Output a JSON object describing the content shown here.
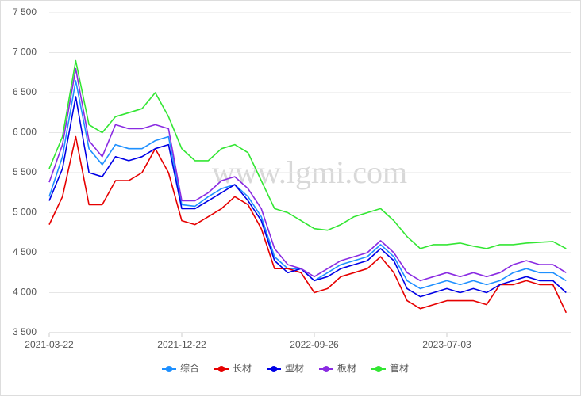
{
  "chart_data": {
    "type": "line",
    "watermark": "www.lgmi.com",
    "categories": [
      "2021-03-22",
      null,
      null,
      null,
      null,
      null,
      null,
      null,
      null,
      null,
      "2021-12-22",
      null,
      null,
      null,
      null,
      null,
      null,
      null,
      null,
      null,
      "2022-09-26",
      null,
      null,
      null,
      null,
      null,
      null,
      null,
      null,
      null,
      "2023-07-03",
      null,
      null,
      null,
      null,
      null,
      null,
      null,
      null,
      null
    ],
    "series": [
      {
        "name": "综合",
        "color": "#1e90ff",
        "values": [
          5200,
          5700,
          6650,
          5800,
          5600,
          5850,
          5800,
          5800,
          5900,
          5950,
          5100,
          5080,
          5200,
          5300,
          5350,
          5200,
          4950,
          4450,
          4300,
          4300,
          4150,
          4250,
          4350,
          4400,
          4450,
          4600,
          4450,
          4150,
          4050,
          4100,
          4150,
          4100,
          4150,
          4100,
          4150,
          4250,
          4300,
          4250,
          4250,
          4150
        ]
      },
      {
        "name": "长材",
        "color": "#e60000",
        "values": [
          4850,
          5200,
          5950,
          5100,
          5100,
          5400,
          5400,
          5500,
          5800,
          5500,
          4900,
          4850,
          4950,
          5050,
          5200,
          5100,
          4800,
          4300,
          4300,
          4250,
          4000,
          4050,
          4200,
          4250,
          4300,
          4450,
          4250,
          3900,
          3800,
          3850,
          3900,
          3900,
          3900,
          3850,
          4100,
          4100,
          4150,
          4100,
          4100,
          3750
        ]
      },
      {
        "name": "型材",
        "color": "#0000e6",
        "values": [
          5150,
          5550,
          6450,
          5500,
          5450,
          5700,
          5650,
          5700,
          5800,
          5850,
          5050,
          5050,
          5150,
          5250,
          5350,
          5150,
          4900,
          4400,
          4250,
          4300,
          4150,
          4200,
          4300,
          4350,
          4400,
          4550,
          4400,
          4050,
          3950,
          4000,
          4050,
          4000,
          4050,
          4000,
          4100,
          4150,
          4200,
          4150,
          4150,
          4000
        ]
      },
      {
        "name": "板材",
        "color": "#8a2be2",
        "values": [
          5380,
          5850,
          6800,
          5900,
          5700,
          6100,
          6050,
          6050,
          6100,
          6050,
          5150,
          5150,
          5250,
          5400,
          5450,
          5300,
          5050,
          4550,
          4350,
          4300,
          4200,
          4300,
          4400,
          4450,
          4500,
          4650,
          4500,
          4250,
          4150,
          4200,
          4250,
          4200,
          4250,
          4200,
          4250,
          4350,
          4400,
          4350,
          4350,
          4250
        ]
      },
      {
        "name": "管材",
        "color": "#33e633",
        "values": [
          5550,
          5950,
          6900,
          6100,
          6000,
          6200,
          6250,
          6300,
          6500,
          6200,
          5800,
          5650,
          5650,
          5800,
          5850,
          5750,
          5400,
          5050,
          5000,
          4900,
          4800,
          4780,
          4850,
          4950,
          5000,
          5050,
          4900,
          4700,
          4550,
          4600,
          4600,
          4620,
          4580,
          4550,
          4600,
          4600,
          4620,
          4630,
          4640,
          4550
        ]
      }
    ],
    "ylim": [
      3500,
      7500
    ],
    "yticks": [
      {
        "value": 3500,
        "label": "3 500"
      },
      {
        "value": 4000,
        "label": "4 000"
      },
      {
        "value": 4500,
        "label": "4 500"
      },
      {
        "value": 5000,
        "label": "5 000"
      },
      {
        "value": 5500,
        "label": "5 500"
      },
      {
        "value": 6000,
        "label": "6 000"
      },
      {
        "value": 6500,
        "label": "6 500"
      },
      {
        "value": 7000,
        "label": "7 000"
      },
      {
        "value": 7500,
        "label": "7 500"
      }
    ],
    "grid": true
  }
}
